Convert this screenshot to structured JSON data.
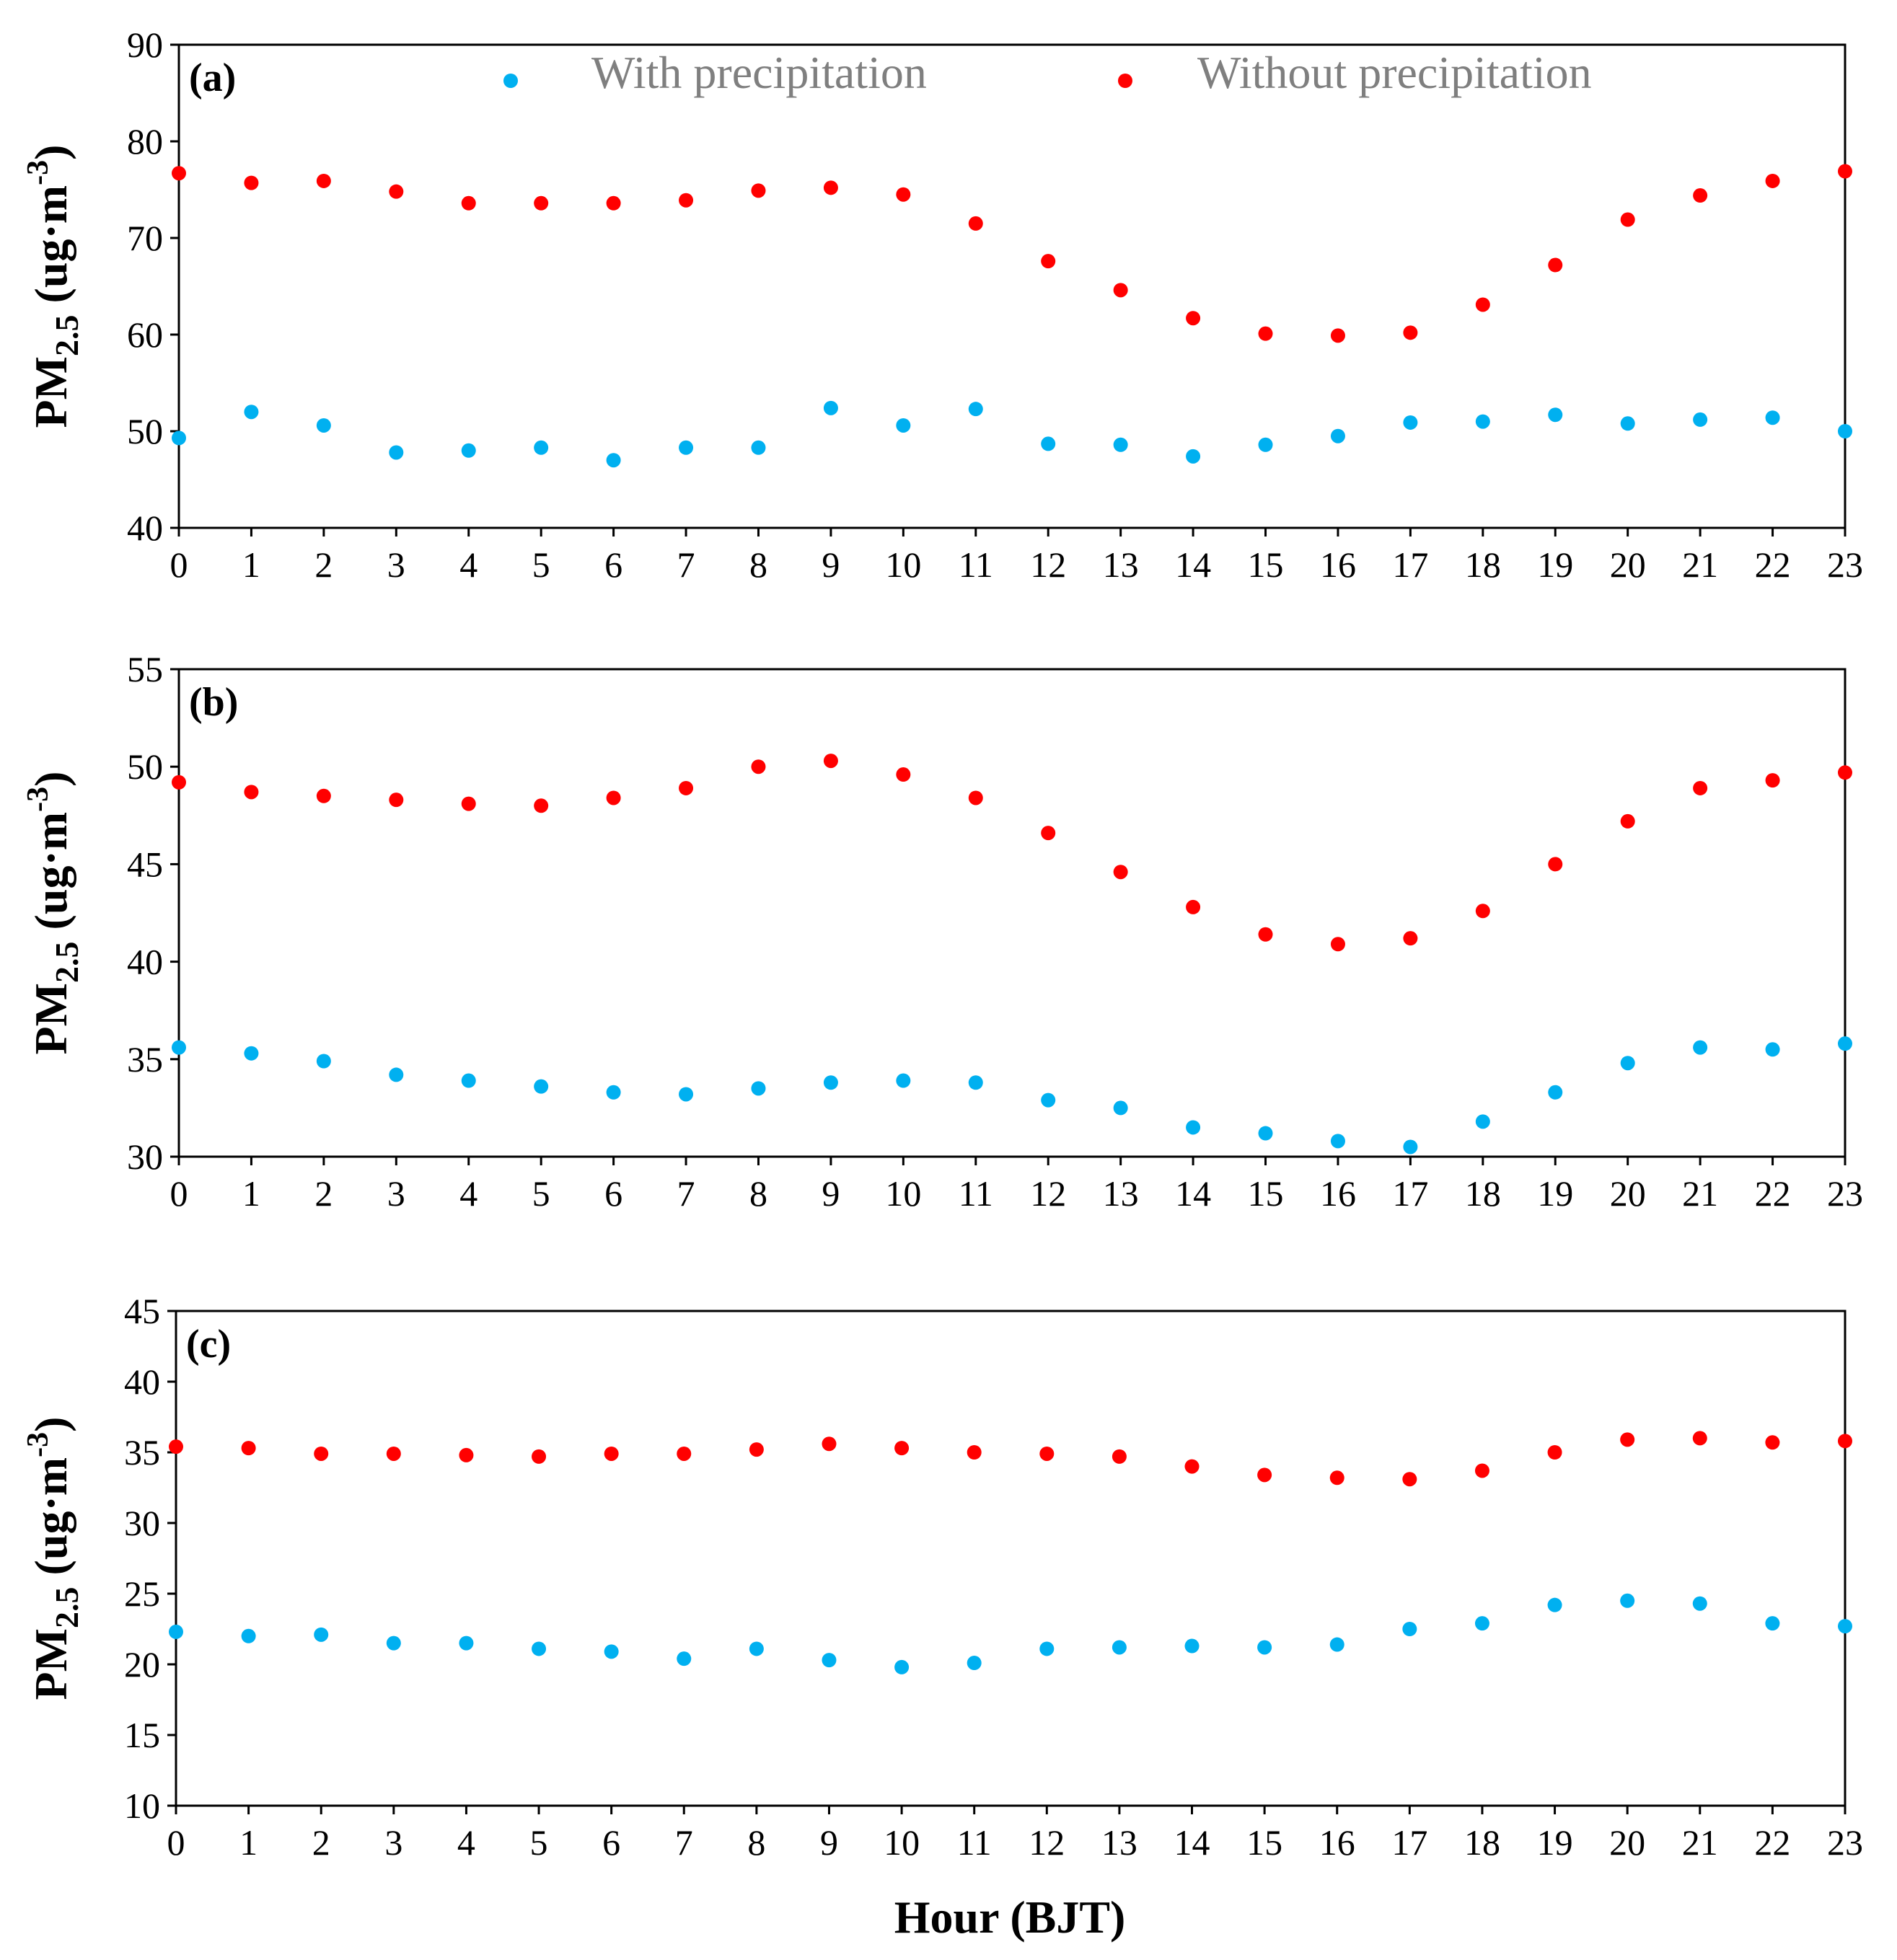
{
  "colors": {
    "with_precipitation": "#00b0f0",
    "without_precipitation": "#ff0000"
  },
  "legend": {
    "with_label": "With precipitation",
    "without_label": "Without precipitation"
  },
  "x_title": "Hour (BJT)",
  "chart_data": [
    {
      "type": "scatter",
      "panel_label": "(a)",
      "ylabel": "PM2.5 (ug·m-3)",
      "ylabel_parts": {
        "base": "PM",
        "sub": "2.5",
        "unit": " (ug·m",
        "sup": "-3",
        "close": ")"
      },
      "xlabel": "Hour (BJT)",
      "xlim": [
        0,
        23
      ],
      "ylim": [
        40,
        90
      ],
      "yticks": [
        40,
        50,
        60,
        70,
        80,
        90
      ],
      "x": [
        0,
        1,
        2,
        3,
        4,
        5,
        6,
        7,
        8,
        9,
        10,
        11,
        12,
        13,
        14,
        15,
        16,
        17,
        18,
        19,
        20,
        21,
        22,
        23
      ],
      "series": [
        {
          "name": "With precipitation",
          "values": [
            49.3,
            52.0,
            50.6,
            47.8,
            48.0,
            48.3,
            47.0,
            48.3,
            48.3,
            52.4,
            50.6,
            52.3,
            48.7,
            48.6,
            47.4,
            48.6,
            49.5,
            50.9,
            51.0,
            51.7,
            50.8,
            51.2,
            51.4,
            50.0
          ]
        },
        {
          "name": "Without precipitation",
          "values": [
            76.7,
            75.7,
            75.9,
            74.8,
            73.6,
            73.6,
            73.6,
            73.9,
            74.9,
            75.2,
            74.5,
            71.5,
            67.6,
            64.6,
            61.7,
            60.1,
            59.9,
            60.2,
            63.1,
            67.2,
            71.9,
            74.4,
            75.9,
            76.9
          ]
        }
      ]
    },
    {
      "type": "scatter",
      "panel_label": "(b)",
      "ylabel": "PM2.5 (ug·m-3)",
      "ylabel_parts": {
        "base": "PM",
        "sub": "2.5",
        "unit": "  (ug·m",
        "sup": "-3",
        "close": ")"
      },
      "xlabel": "Hour (BJT)",
      "xlim": [
        0,
        23
      ],
      "ylim": [
        30,
        55
      ],
      "yticks": [
        30,
        35,
        40,
        45,
        50,
        55
      ],
      "x": [
        0,
        1,
        2,
        3,
        4,
        5,
        6,
        7,
        8,
        9,
        10,
        11,
        12,
        13,
        14,
        15,
        16,
        17,
        18,
        19,
        20,
        21,
        22,
        23
      ],
      "series": [
        {
          "name": "With precipitation",
          "values": [
            35.6,
            35.3,
            34.9,
            34.2,
            33.9,
            33.6,
            33.3,
            33.2,
            33.5,
            33.8,
            33.9,
            33.8,
            32.9,
            32.5,
            31.5,
            31.2,
            30.8,
            30.5,
            31.8,
            33.3,
            34.8,
            35.6,
            35.5,
            35.8
          ]
        },
        {
          "name": "Without precipitation",
          "values": [
            49.2,
            48.7,
            48.5,
            48.3,
            48.1,
            48.0,
            48.4,
            48.9,
            50.0,
            50.3,
            49.6,
            48.4,
            46.6,
            44.6,
            42.8,
            41.4,
            40.9,
            41.2,
            42.6,
            45.0,
            47.2,
            48.9,
            49.3,
            49.7
          ]
        }
      ]
    },
    {
      "type": "scatter",
      "panel_label": "(c)",
      "ylabel": "PM2.5 (ug·m-3)",
      "ylabel_parts": {
        "base": "PM",
        "sub": "2.5",
        "unit": " (ug·m",
        "sup": "-3",
        "close": ")"
      },
      "xlabel": "Hour (BJT)",
      "xlim": [
        0,
        23
      ],
      "ylim": [
        10,
        45
      ],
      "yticks": [
        10,
        15,
        20,
        25,
        30,
        35,
        40,
        45
      ],
      "x": [
        0,
        1,
        2,
        3,
        4,
        5,
        6,
        7,
        8,
        9,
        10,
        11,
        12,
        13,
        14,
        15,
        16,
        17,
        18,
        19,
        20,
        21,
        22,
        23
      ],
      "series": [
        {
          "name": "With precipitation",
          "values": [
            22.3,
            22.0,
            22.1,
            21.5,
            21.5,
            21.1,
            20.9,
            20.4,
            21.1,
            20.3,
            19.8,
            20.1,
            21.1,
            21.2,
            21.3,
            21.2,
            21.4,
            22.5,
            22.9,
            24.2,
            24.5,
            24.3,
            22.9,
            22.7
          ]
        },
        {
          "name": "Without precipitation",
          "values": [
            35.4,
            35.3,
            34.9,
            34.9,
            34.8,
            34.7,
            34.9,
            34.9,
            35.2,
            35.6,
            35.3,
            35.0,
            34.9,
            34.7,
            34.0,
            33.4,
            33.2,
            33.1,
            33.7,
            35.0,
            35.9,
            36.0,
            35.7,
            35.8
          ]
        }
      ]
    }
  ]
}
